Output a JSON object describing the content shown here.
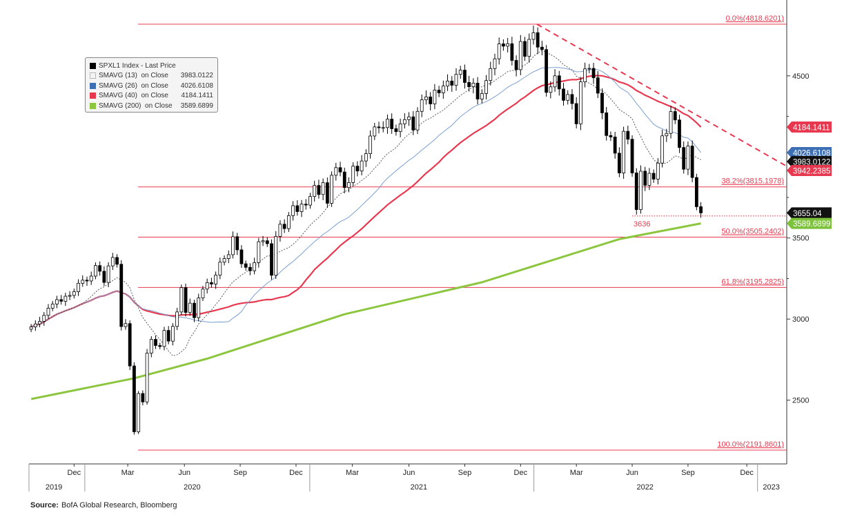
{
  "chart_data": {
    "type": "candlestick-line",
    "title": "SPXL1 Index - Last Price",
    "x_unit": "week index starting first week of Oct 2019",
    "xlim": [
      -0.5,
      176
    ],
    "ylim": [
      2150,
      4870
    ],
    "y_ticks": [
      2500,
      3000,
      3500,
      4500
    ],
    "month_ticks": [
      {
        "label": "Dec",
        "i": 10
      },
      {
        "label": "Mar",
        "i": 22.5
      },
      {
        "label": "Jun",
        "i": 35.7
      },
      {
        "label": "Sep",
        "i": 48.7
      },
      {
        "label": "Dec",
        "i": 61.7
      },
      {
        "label": "Mar",
        "i": 74.8
      },
      {
        "label": "Jun",
        "i": 88
      },
      {
        "label": "Sep",
        "i": 101
      },
      {
        "label": "Dec",
        "i": 114
      },
      {
        "label": "Mar",
        "i": 127
      },
      {
        "label": "Jun",
        "i": 140
      },
      {
        "label": "Sep",
        "i": 153
      },
      {
        "label": "Dec",
        "i": 166.7
      }
    ],
    "year_labels": [
      {
        "label": "2019",
        "i": 5.3
      },
      {
        "label": "2020",
        "i": 37.5
      },
      {
        "label": "2021",
        "i": 90.3
      },
      {
        "label": "2022",
        "i": 143
      },
      {
        "label": "2023",
        "i": 172.4
      }
    ],
    "year_separators": [
      12.5,
      64.9,
      117.1,
      169.2
    ],
    "weekly_close": [
      2952,
      2970,
      2986,
      3023,
      3067,
      3093,
      3120,
      3110,
      3141,
      3146,
      3169,
      3221,
      3240,
      3235,
      3265,
      3330,
      3295,
      3226,
      3328,
      3380,
      3338,
      2954,
      2972,
      2711,
      2305,
      2541,
      2489,
      2790,
      2875,
      2837,
      2831,
      2930,
      2864,
      2955,
      3044,
      3194,
      3041,
      3098,
      3009,
      3130,
      3185,
      3225,
      3216,
      3271,
      3351,
      3373,
      3397,
      3508,
      3427,
      3341,
      3319,
      3298,
      3348,
      3477,
      3483,
      3465,
      3270,
      3510,
      3585,
      3558,
      3638,
      3699,
      3663,
      3709,
      3703,
      3756,
      3824,
      3768,
      3841,
      3714,
      3887,
      3934,
      3907,
      3811,
      3842,
      3943,
      3913,
      3975,
      4020,
      4129,
      4185,
      4180,
      4181,
      4233,
      4174,
      4156,
      4204,
      4230,
      4247,
      4166,
      4281,
      4352,
      4370,
      4327,
      4412,
      4395,
      4437,
      4468,
      4442,
      4509,
      4535,
      4459,
      4433,
      4455,
      4357,
      4391,
      4471,
      4545,
      4605,
      4697,
      4683,
      4698,
      4595,
      4538,
      4712,
      4620,
      4725,
      4766,
      4677,
      4662,
      4398,
      4432,
      4500,
      4419,
      4349,
      4385,
      4329,
      4204,
      4463,
      4543,
      4546,
      4488,
      4393,
      4272,
      4132,
      4123,
      4023,
      3901,
      4158,
      4109,
      3901,
      3675,
      3912,
      3825,
      3899,
      3863,
      3962,
      4130,
      4145,
      4280,
      4228,
      4058,
      3924,
      4067,
      3873,
      3693,
      3655.04
    ],
    "series": [
      {
        "name": "SMAVG (13)  on Close",
        "value": "3983.0122",
        "period": 13,
        "color": "#555555",
        "style": "dotted"
      },
      {
        "name": "SMAVG (26)  on Close",
        "value": "4026.6108",
        "period": 26,
        "color": "#7a9fd0",
        "style": "solid"
      },
      {
        "name": "SMAVG (40)  on Close",
        "value": "4184.1411",
        "period": 40,
        "color": "#e8384f",
        "style": "solid"
      },
      {
        "name": "SMAVG (200)  on Close",
        "value": "3589.6899",
        "color": "#8cc63f",
        "style": "solid",
        "points": [
          [
            0,
            2507
          ],
          [
            24,
            2635
          ],
          [
            41,
            2756
          ],
          [
            73,
            3030
          ],
          [
            105,
            3227
          ],
          [
            137,
            3493
          ],
          [
            156,
            3590
          ]
        ]
      }
    ],
    "legend": {
      "title": "SPXL1 Index - Last Price",
      "title_color": "#000000",
      "placement": "top-left"
    },
    "fib_levels": [
      {
        "label": "0.0%(4818.6201)",
        "value": 4818.6201
      },
      {
        "label": "38.2%(3815.1978)",
        "value": 3815.1978
      },
      {
        "label": "50.0%(3505.2402)",
        "value": 3505.2402
      },
      {
        "label": "61.8%(3195.2825)",
        "value": 3195.2825
      },
      {
        "label": "100.0%(2191.8601)",
        "value": 2191.8601
      }
    ],
    "trendline": {
      "from": [
        117.8,
        4818.62
      ],
      "to": [
        176,
        3942.2385
      ],
      "color": "#e8384f"
    },
    "support": {
      "label": "3636",
      "value": 3636,
      "from_i": 140
    },
    "tags": [
      {
        "text": "4184.1411",
        "value": 4184.1411,
        "color": "#e8384f"
      },
      {
        "text": "4026.6108",
        "value": 4026.6108,
        "color": "#3d6fb5"
      },
      {
        "text": "3983.0122",
        "value": 3983.0122,
        "color": "#111111"
      },
      {
        "text": "3942.2385",
        "value": 3942.2385,
        "color": "#e8384f"
      },
      {
        "text": "3655.04",
        "value": 3655.04,
        "color": "#111111"
      },
      {
        "text": "3589.6899",
        "value": 3589.6899,
        "color": "#7cc23a"
      }
    ]
  },
  "source": {
    "label": "Source:",
    "text": "BofA Global Research, Bloomberg"
  }
}
